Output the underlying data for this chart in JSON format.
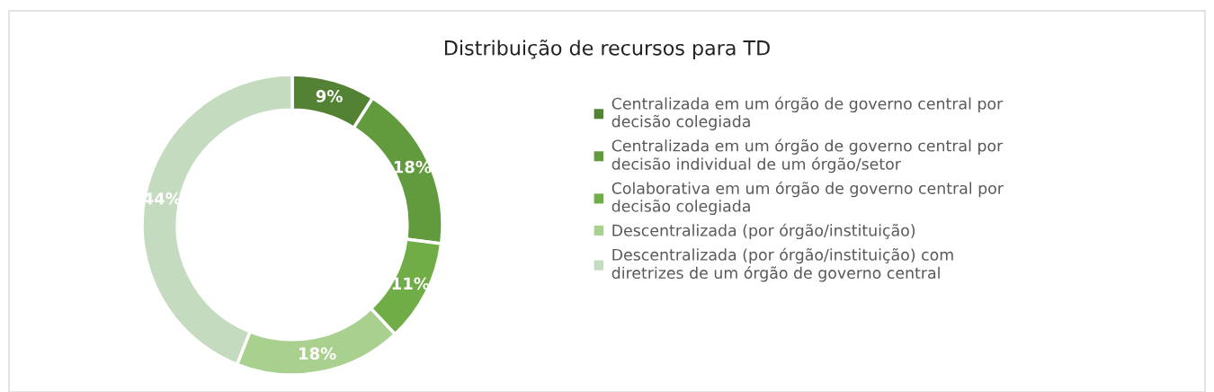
{
  "chart_data": {
    "type": "donut",
    "title": "Distribuição de recursos para TD",
    "categories": [
      "Centralizada em um órgão de governo central por decisão colegiada",
      "Centralizada em um órgão de governo central por decisão individual de um órgão/setor",
      "Colaborativa em um órgão de governo central por decisão colegiada",
      "Descentralizada (por órgão/instituição)",
      "Descentralizada (por órgão/instituição) com diretrizes de um órgão de governo central"
    ],
    "values": [
      9,
      18,
      11,
      18,
      44
    ],
    "colors": [
      "#548235",
      "#629a3e",
      "#70ad47",
      "#a9d08e",
      "#c5dbbf"
    ],
    "value_labels": [
      "9%",
      "18%",
      "11%",
      "18%",
      "44%"
    ],
    "legend": "right"
  }
}
